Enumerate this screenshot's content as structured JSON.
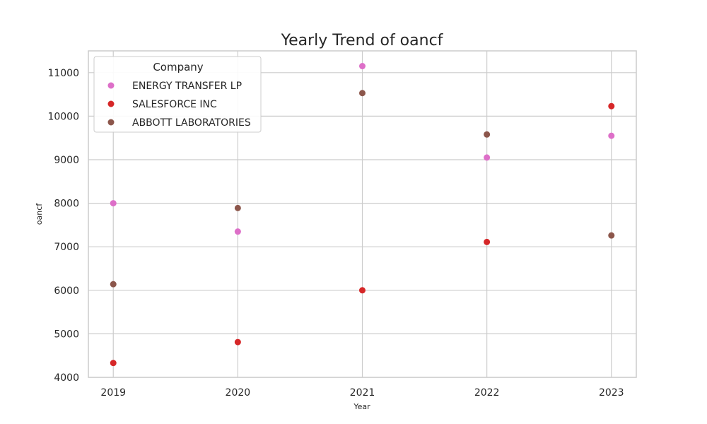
{
  "chart_data": {
    "type": "scatter",
    "title": "Yearly Trend of oancf",
    "xlabel": "Year",
    "ylabel": "oancf",
    "x": [
      2019,
      2020,
      2021,
      2022,
      2023
    ],
    "xlim": [
      2018.8,
      2023.2
    ],
    "ylim": [
      4000,
      11500
    ],
    "yticks": [
      4000,
      5000,
      6000,
      7000,
      8000,
      9000,
      10000,
      11000
    ],
    "grid": true,
    "legend_title": "Company",
    "legend_position": "top-left",
    "series": [
      {
        "name": "ENERGY TRANSFER LP",
        "color": "#dd6fc8",
        "x": [
          2019,
          2020,
          2021,
          2022,
          2023
        ],
        "y": [
          8000,
          7350,
          11150,
          9050,
          9550
        ]
      },
      {
        "name": "SALESFORCE INC",
        "color": "#d62728",
        "x": [
          2019,
          2020,
          2021,
          2022,
          2023
        ],
        "y": [
          4330,
          4810,
          6000,
          7110,
          10230
        ]
      },
      {
        "name": "ABBOTT LABORATORIES",
        "color": "#8c564b",
        "x": [
          2019,
          2020,
          2021,
          2022,
          2023
        ],
        "y": [
          6140,
          7890,
          10530,
          9580,
          7260
        ]
      }
    ]
  }
}
